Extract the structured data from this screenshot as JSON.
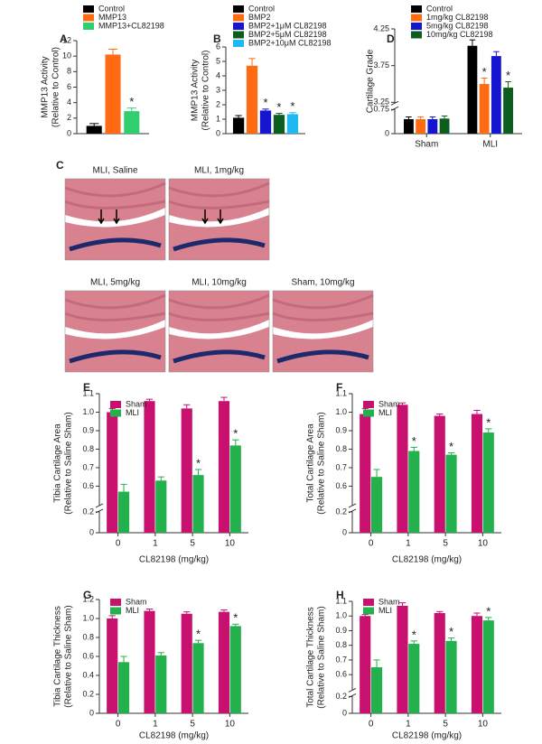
{
  "chart_data": [
    {
      "type": "bar",
      "panel_label": "A",
      "ylabel": [
        "MMP13 Activity",
        "(Relative to Control)"
      ],
      "categories": [
        null
      ],
      "series": [
        {
          "name": "Control",
          "color": "#000000",
          "values": [
            1
          ],
          "errors": [
            0.3
          ]
        },
        {
          "name": "MMP13",
          "color": "#ff6a13",
          "values": [
            10.2
          ],
          "errors": [
            0.7
          ]
        },
        {
          "name": "MMP13+CL82198",
          "color": "#2fcf6e",
          "values": [
            2.9
          ],
          "errors": [
            0.4
          ],
          "significance": [
            "*"
          ]
        }
      ],
      "ylim": [
        0,
        12
      ],
      "yticks": [
        0,
        2,
        4,
        6,
        8,
        10,
        12
      ],
      "legend": "top-left"
    },
    {
      "type": "bar",
      "panel_label": "B",
      "ylabel": [
        "MMP13 Activity",
        "(Relative to Control)"
      ],
      "categories": [
        null
      ],
      "series": [
        {
          "name": "Control",
          "color": "#000000",
          "values": [
            1.1
          ],
          "errors": [
            0.15
          ]
        },
        {
          "name": "BMP2",
          "color": "#ff6a13",
          "values": [
            4.7
          ],
          "errors": [
            0.5
          ]
        },
        {
          "name": "BMP2+1μM CL82198",
          "color": "#1515d0",
          "values": [
            1.6
          ],
          "errors": [
            0.1
          ],
          "significance": [
            "*"
          ]
        },
        {
          "name": "BMP2+5μM CL82198",
          "color": "#0d5e1e",
          "values": [
            1.3
          ],
          "errors": [
            0.1
          ],
          "significance": [
            "*"
          ]
        },
        {
          "name": "BMP2+10μM CL82198",
          "color": "#20b8f0",
          "values": [
            1.35
          ],
          "errors": [
            0.1
          ],
          "significance": [
            "*"
          ]
        }
      ],
      "ylim": [
        0,
        6
      ],
      "yticks": [
        0,
        1,
        2,
        3,
        4,
        5,
        6
      ],
      "legend": "top-left"
    },
    {
      "type": "bar",
      "panel_label": "D",
      "ylabel": [
        "Cartilage Grade"
      ],
      "categories": [
        "Sham",
        "MLI"
      ],
      "series": [
        {
          "name": "Control",
          "color": "#000000",
          "values": [
            0.45,
            4.02
          ],
          "errors": [
            0.07,
            0.08
          ]
        },
        {
          "name": "1mg/kg CL82198",
          "color": "#ff6a13",
          "values": [
            0.45,
            3.5
          ],
          "errors": [
            0.07,
            0.08
          ],
          "significance": [
            null,
            "*"
          ]
        },
        {
          "name": "5mg/kg CL82198",
          "color": "#1515d0",
          "values": [
            0.45,
            3.88
          ],
          "errors": [
            0.07,
            0.06
          ]
        },
        {
          "name": "10mg/kg CL82198",
          "color": "#0d5e1e",
          "values": [
            0.47,
            3.45
          ],
          "errors": [
            0.08,
            0.08
          ],
          "significance": [
            null,
            "*"
          ]
        }
      ],
      "ylim": [
        0,
        4.25
      ],
      "yticks": [
        0,
        0.75,
        3.25,
        3.75,
        4.25
      ],
      "axis_break": [
        0.75,
        3.25
      ],
      "legend": "top-left"
    },
    {
      "type": "bar",
      "panel_label": "E",
      "ylabel": [
        "Tibia Cartilage Area",
        "(Relative to Saline Sham)"
      ],
      "xlabel": "CL82198 (mg/kg)",
      "categories": [
        "0",
        "1",
        "5",
        "10"
      ],
      "series": [
        {
          "name": "Sham",
          "color": "#c8106e",
          "values": [
            1.0,
            1.06,
            1.02,
            1.06
          ],
          "errors": [
            0.02,
            0.01,
            0.02,
            0.02
          ]
        },
        {
          "name": "MLI",
          "color": "#22b14c",
          "values": [
            0.57,
            0.63,
            0.66,
            0.82
          ],
          "errors": [
            0.04,
            0.02,
            0.03,
            0.03
          ],
          "significance": [
            null,
            null,
            "*",
            "*"
          ]
        }
      ],
      "ylim": [
        0,
        1.1
      ],
      "yticks": [
        0,
        0.2,
        0.6,
        0.7,
        0.8,
        0.9,
        {
          "value": 1,
          "label": "1.0"
        },
        1.1
      ],
      "axis_break": [
        0.2,
        0.5
      ],
      "legend": "top-left"
    },
    {
      "type": "bar",
      "panel_label": "F",
      "ylabel": [
        "Total Cartilage Area",
        "(Relative to Saline Sham)"
      ],
      "xlabel": "CL82198 (mg/kg)",
      "categories": [
        "0",
        "1",
        "5",
        "10"
      ],
      "series": [
        {
          "name": "Sham",
          "color": "#c8106e",
          "values": [
            0.99,
            1.04,
            0.98,
            0.99
          ],
          "errors": [
            0.03,
            0.01,
            0.01,
            0.02
          ]
        },
        {
          "name": "MLI",
          "color": "#22b14c",
          "values": [
            0.65,
            0.79,
            0.77,
            0.89
          ],
          "errors": [
            0.04,
            0.02,
            0.01,
            0.02
          ],
          "significance": [
            null,
            "*",
            "*",
            "*"
          ]
        }
      ],
      "ylim": [
        0,
        1.1
      ],
      "yticks": [
        0,
        0.2,
        0.6,
        0.7,
        0.8,
        0.9,
        {
          "value": 1,
          "label": "1.0"
        },
        1.1
      ],
      "axis_break": [
        0.2,
        0.5
      ],
      "legend": "top-left"
    },
    {
      "type": "bar",
      "panel_label": "G",
      "ylabel": [
        "Tibia Cartilage Thickness",
        "(Relative to Saline Sham)"
      ],
      "xlabel": "CL82198 (mg/kg)",
      "categories": [
        "0",
        "1",
        "5",
        "10"
      ],
      "series": [
        {
          "name": "Sham",
          "color": "#c8106e",
          "values": [
            1.0,
            1.08,
            1.05,
            1.07
          ],
          "errors": [
            0.03,
            0.02,
            0.02,
            0.02
          ]
        },
        {
          "name": "MLI",
          "color": "#22b14c",
          "values": [
            0.54,
            0.61,
            0.74,
            0.92
          ],
          "errors": [
            0.06,
            0.03,
            0.03,
            0.02
          ],
          "significance": [
            null,
            null,
            "*",
            "*"
          ]
        }
      ],
      "ylim": [
        0,
        1.2
      ],
      "yticks": [
        0,
        0.2,
        0.4,
        0.6,
        0.8,
        {
          "value": 1,
          "label": "1.0"
        },
        1.2
      ],
      "legend": "top-left"
    },
    {
      "type": "bar",
      "panel_label": "H",
      "ylabel": [
        "Total Cartilage Thickness",
        "(Relative to Saline Sham)"
      ],
      "xlabel": "CL82198 (mg/kg)",
      "categories": [
        "0",
        "1",
        "5",
        "10"
      ],
      "series": [
        {
          "name": "Sham",
          "color": "#c8106e",
          "values": [
            1.0,
            1.07,
            1.02,
            1.0
          ],
          "errors": [
            0.01,
            0.02,
            0.01,
            0.02
          ]
        },
        {
          "name": "MLI",
          "color": "#22b14c",
          "values": [
            0.65,
            0.81,
            0.83,
            0.97
          ],
          "errors": [
            0.05,
            0.02,
            0.02,
            0.02
          ],
          "significance": [
            null,
            "*",
            "*",
            "*"
          ]
        }
      ],
      "ylim": [
        0,
        1.1
      ],
      "yticks": [
        0,
        0.2,
        0.6,
        0.7,
        0.8,
        0.9,
        {
          "value": 1,
          "label": "1.0"
        },
        1.1
      ],
      "axis_break": [
        0.2,
        0.5
      ],
      "legend": "top-left"
    }
  ],
  "figure_c": {
    "panel_label": "C",
    "images": [
      "MLI, Saline",
      "MLI, 1mg/kg",
      "MLI, 5mg/kg",
      "MLI, 10mg/kg",
      "Sham, 10mg/kg"
    ]
  }
}
